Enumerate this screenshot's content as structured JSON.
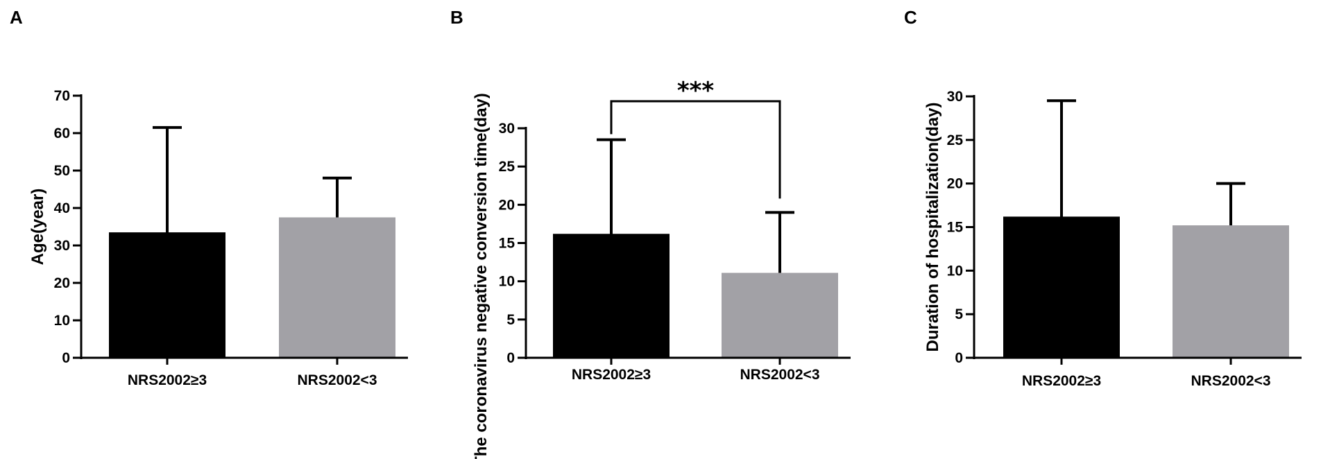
{
  "chart_data": [
    {
      "panel": "A",
      "type": "bar",
      "categories": [
        "NRS2002≥3",
        "NRS2002<3"
      ],
      "values": [
        33.5,
        37.5
      ],
      "errors": [
        28.0,
        10.5
      ],
      "ylabel": "Age(year)",
      "ylim": [
        0,
        70
      ],
      "yticks": [
        0,
        10,
        20,
        30,
        40,
        50,
        60,
        70
      ],
      "colors": [
        "#000000",
        "#a2a1a6"
      ]
    },
    {
      "panel": "B",
      "type": "bar",
      "categories": [
        "NRS2002≥3",
        "NRS2002<3"
      ],
      "values": [
        16.2,
        11.1
      ],
      "errors": [
        12.3,
        7.9
      ],
      "ylabel": "The coronavirus negative conversion time(day)",
      "ylim": [
        0,
        30
      ],
      "yticks": [
        0,
        5,
        10,
        15,
        20,
        25,
        30
      ],
      "colors": [
        "#000000",
        "#a2a1a6"
      ],
      "significance": "***"
    },
    {
      "panel": "C",
      "type": "bar",
      "categories": [
        "NRS2002≥3",
        "NRS2002<3"
      ],
      "values": [
        16.2,
        15.2
      ],
      "errors": [
        13.3,
        4.8
      ],
      "ylabel": "Duration of hospitalization(day)",
      "ylim": [
        0,
        30
      ],
      "yticks": [
        0,
        5,
        10,
        15,
        20,
        25,
        30
      ],
      "colors": [
        "#000000",
        "#a2a1a6"
      ]
    }
  ]
}
